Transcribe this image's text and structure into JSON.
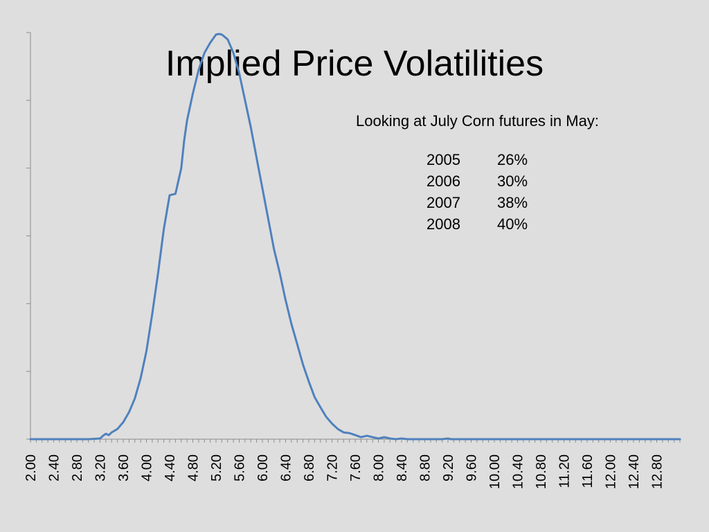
{
  "slide": {
    "title": "Implied Price Volatilities"
  },
  "note": {
    "heading": "Looking at July Corn futures in May:",
    "rows": [
      {
        "year": "2005",
        "value": "26%"
      },
      {
        "year": "2006",
        "value": "30%"
      },
      {
        "year": "2007",
        "value": "38%"
      },
      {
        "year": "2008",
        "value": "40%"
      }
    ]
  },
  "colors": {
    "background": "#dedede",
    "line": "#4f81bd",
    "axis": "#8c8c8c"
  },
  "chart_data": {
    "type": "line",
    "title": "",
    "xlabel": "",
    "ylabel": "",
    "x_tick_labels": [
      "2.00",
      "2.40",
      "2.80",
      "3.20",
      "3.60",
      "4.00",
      "4.40",
      "4.80",
      "5.20",
      "5.60",
      "6.00",
      "6.40",
      "6.80",
      "7.20",
      "7.60",
      "8.00",
      "8.40",
      "8.80",
      "9.20",
      "9.60",
      "10.00",
      "10.40",
      "10.80",
      "11.20",
      "11.60",
      "12.00",
      "12.40",
      "12.80"
    ],
    "xlim": [
      2.0,
      13.2
    ],
    "ylim": [
      0,
      6
    ],
    "y_tick_count": 6,
    "y_tick_labels_shown": false,
    "grid": false,
    "legend": "none",
    "series": [
      {
        "x": [
          2.0,
          2.5,
          3.0,
          3.2,
          3.25,
          3.3,
          3.35,
          3.4,
          3.5,
          3.6,
          3.7,
          3.8,
          3.9,
          4.0,
          4.1,
          4.2,
          4.3,
          4.4,
          4.5,
          4.6,
          4.65,
          4.7,
          4.75,
          4.8,
          4.9,
          5.0,
          5.1,
          5.2,
          5.25,
          5.3,
          5.4,
          5.5,
          5.6,
          5.7,
          5.8,
          5.9,
          6.0,
          6.1,
          6.2,
          6.3,
          6.4,
          6.5,
          6.6,
          6.7,
          6.8,
          6.9,
          7.0,
          7.1,
          7.2,
          7.3,
          7.4,
          7.5,
          7.6,
          7.7,
          7.8,
          7.9,
          8.0,
          8.1,
          8.2,
          8.3,
          8.4,
          8.5,
          8.6,
          8.7,
          8.8,
          9.0,
          9.1,
          9.2,
          9.25,
          9.3,
          9.4,
          10.0,
          11.0,
          12.0,
          13.0,
          13.2
        ],
        "y": [
          0,
          0,
          0,
          0.01,
          0.05,
          0.08,
          0.06,
          0.1,
          0.15,
          0.25,
          0.4,
          0.6,
          0.9,
          1.3,
          1.85,
          2.45,
          3.1,
          3.6,
          3.62,
          4.0,
          4.4,
          4.7,
          4.9,
          5.1,
          5.45,
          5.7,
          5.85,
          5.97,
          5.98,
          5.97,
          5.9,
          5.7,
          5.4,
          5.0,
          4.6,
          4.15,
          3.7,
          3.25,
          2.8,
          2.45,
          2.05,
          1.7,
          1.4,
          1.1,
          0.85,
          0.62,
          0.47,
          0.33,
          0.23,
          0.15,
          0.1,
          0.09,
          0.06,
          0.03,
          0.05,
          0.03,
          0.01,
          0.03,
          0.01,
          0.0,
          0.01,
          0.0,
          0.0,
          0.0,
          0.0,
          0.0,
          0.0,
          0.01,
          0.0,
          0.0,
          0.0,
          0.0,
          0.0,
          0.0,
          0.0,
          0.0
        ]
      }
    ]
  }
}
